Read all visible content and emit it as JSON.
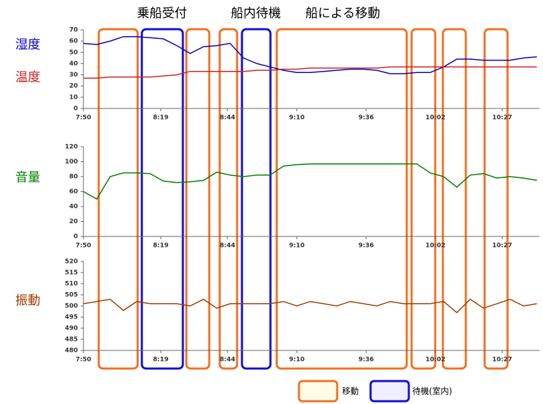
{
  "phases": [
    "乗船受付",
    "船内待機",
    "船による移動"
  ],
  "legend": [
    {
      "label": "移動",
      "color": "#f07020"
    },
    {
      "label": "待機(室内)",
      "color": "#1010d0"
    }
  ],
  "chart_data": [
    {
      "type": "line",
      "x": [
        "7:50",
        "7:55",
        "8:00",
        "8:05",
        "8:10",
        "8:15",
        "8:20",
        "8:25",
        "8:30",
        "8:35",
        "8:40",
        "8:45",
        "8:50",
        "8:55",
        "9:00",
        "9:05",
        "9:10",
        "9:15",
        "9:20",
        "9:25",
        "9:30",
        "9:35",
        "9:40",
        "9:45",
        "9:50",
        "9:55",
        "10:00",
        "10:05",
        "10:10",
        "10:15",
        "10:20",
        "10:25",
        "10:30",
        "10:35",
        "10:40"
      ],
      "xlim": [
        "7:50",
        "10:41"
      ],
      "xticks": [
        "7:50",
        "8:19",
        "8:44",
        "9:10",
        "9:36",
        "10:02",
        "10:27"
      ],
      "ylim": [
        0,
        70
      ],
      "yticks": [
        0,
        10,
        20,
        30,
        40,
        50,
        60,
        70
      ],
      "series": [
        {
          "name": "湿度",
          "color": "#0000c8",
          "values": [
            58,
            57,
            60,
            64,
            64,
            63,
            62,
            56,
            49,
            55,
            56,
            58,
            45,
            40,
            37,
            34,
            32,
            32,
            33,
            34,
            35,
            35,
            34,
            31,
            31,
            32,
            32,
            37,
            44,
            44,
            43,
            43,
            43,
            45,
            46
          ]
        },
        {
          "name": "温度",
          "color": "#d02020",
          "values": [
            27,
            27,
            28,
            28,
            28,
            28,
            29,
            30,
            33,
            33,
            33,
            33,
            33,
            34,
            34,
            35,
            35,
            36,
            36,
            36,
            36,
            36,
            36,
            37,
            37,
            37,
            37,
            37,
            37,
            37,
            37,
            37,
            37,
            37,
            37
          ]
        }
      ]
    },
    {
      "type": "line",
      "x": [
        "7:50",
        "7:55",
        "8:00",
        "8:05",
        "8:10",
        "8:15",
        "8:20",
        "8:25",
        "8:30",
        "8:35",
        "8:40",
        "8:45",
        "8:50",
        "8:55",
        "9:00",
        "9:05",
        "9:10",
        "9:15",
        "9:20",
        "9:25",
        "9:30",
        "9:35",
        "9:40",
        "9:45",
        "9:50",
        "9:55",
        "10:00",
        "10:05",
        "10:10",
        "10:15",
        "10:20",
        "10:25",
        "10:30",
        "10:35",
        "10:40"
      ],
      "xlim": [
        "7:50",
        "10:41"
      ],
      "xticks": [
        "7:50",
        "8:19",
        "8:44",
        "9:10",
        "9:36",
        "10:02",
        "10:27"
      ],
      "ylim": [
        0,
        120
      ],
      "yticks": [
        0,
        20,
        40,
        60,
        80,
        100,
        120
      ],
      "series": [
        {
          "name": "音量",
          "color": "#008000",
          "values": [
            60,
            50,
            80,
            85,
            85,
            84,
            74,
            72,
            73,
            75,
            86,
            82,
            80,
            82,
            82,
            94,
            96,
            97,
            97,
            97,
            97,
            97,
            97,
            97,
            97,
            97,
            85,
            80,
            66,
            82,
            84,
            78,
            80,
            78,
            75
          ]
        }
      ]
    },
    {
      "type": "line",
      "x": [
        "7:50",
        "7:55",
        "8:00",
        "8:05",
        "8:10",
        "8:15",
        "8:20",
        "8:25",
        "8:30",
        "8:35",
        "8:40",
        "8:45",
        "8:50",
        "8:55",
        "9:00",
        "9:05",
        "9:10",
        "9:15",
        "9:20",
        "9:25",
        "9:30",
        "9:35",
        "9:40",
        "9:45",
        "9:50",
        "9:55",
        "10:00",
        "10:05",
        "10:10",
        "10:15",
        "10:20",
        "10:25",
        "10:30",
        "10:35",
        "10:40"
      ],
      "xlim": [
        "7:50",
        "10:41"
      ],
      "xticks": [
        "7:50",
        "8:19",
        "8:44",
        "9:10",
        "9:36",
        "10:02",
        "10:27"
      ],
      "ylim": [
        480,
        520
      ],
      "yticks": [
        480,
        485,
        490,
        495,
        500,
        505,
        510,
        515,
        520
      ],
      "series": [
        {
          "name": "振動",
          "color": "#a03c00",
          "values": [
            501,
            502,
            503,
            498,
            502,
            501,
            501,
            501,
            500,
            503,
            499,
            501,
            501,
            501,
            501,
            502,
            500,
            502,
            501,
            500,
            502,
            501,
            500,
            502,
            501,
            501,
            501,
            502,
            497,
            503,
            499,
            501,
            503,
            500,
            501
          ]
        }
      ]
    }
  ]
}
